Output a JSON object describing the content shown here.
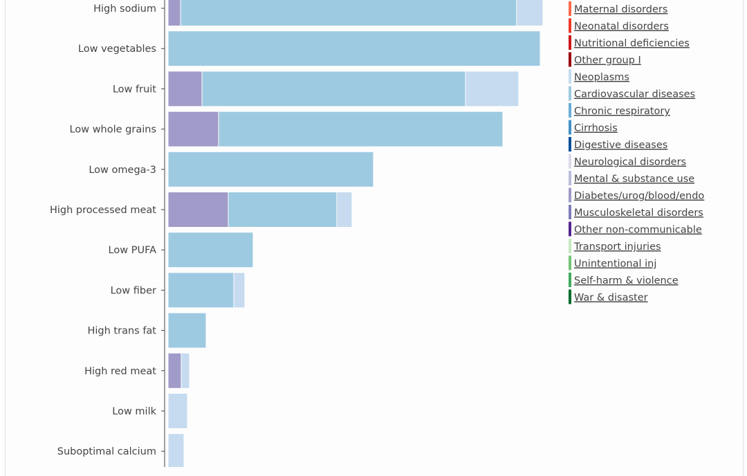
{
  "chart_data": {
    "type": "bar",
    "orientation": "horizontal",
    "stacked": true,
    "title": "",
    "xlabel": "",
    "ylabel": "",
    "units": "relative (axis not shown)",
    "xlim": [
      0,
      560
    ],
    "grid": false,
    "legend_placement": "right",
    "categories": [
      "High sodium",
      "Low vegetables",
      "Low fruit",
      "Low whole grains",
      "Low omega-3",
      "High processed meat",
      "Low PUFA",
      "Low fiber",
      "High trans fat",
      "High red meat",
      "Low milk",
      "Suboptimal calcium"
    ],
    "series": [
      {
        "name": "Diabetes/urog/blood/endo",
        "color": "#a09bc8",
        "values": [
          18,
          0,
          49,
          73,
          0,
          87,
          0,
          0,
          0,
          19,
          0,
          0
        ]
      },
      {
        "name": "Cardiovascular diseases",
        "color": "#9ecae1",
        "values": [
          486,
          538,
          381,
          411,
          297,
          157,
          123,
          95,
          55,
          0,
          0,
          0
        ]
      },
      {
        "name": "Neoplasms",
        "color": "#c6dbef",
        "values": [
          38,
          0,
          77,
          0,
          0,
          22,
          0,
          16,
          0,
          12,
          28,
          23
        ]
      }
    ],
    "legend": [
      {
        "label": "Maternal disorders",
        "color": "#fb6a4a"
      },
      {
        "label": "Neonatal disorders",
        "color": "#ef3b2c"
      },
      {
        "label": "Nutritional deficiencies",
        "color": "#cb181d"
      },
      {
        "label": "Other group I",
        "color": "#99000d"
      },
      {
        "label": "Neoplasms",
        "color": "#c6dbef"
      },
      {
        "label": "Cardiovascular diseases",
        "color": "#9ecae1"
      },
      {
        "label": "Chronic respiratory",
        "color": "#6baed6"
      },
      {
        "label": "Cirrhosis",
        "color": "#4292c6"
      },
      {
        "label": "Digestive diseases",
        "color": "#08519c"
      },
      {
        "label": "Neurological disorders",
        "color": "#dadaeb"
      },
      {
        "label": "Mental & substance use",
        "color": "#bcbddc"
      },
      {
        "label": "Diabetes/urog/blood/endo",
        "color": "#9e9ac8"
      },
      {
        "label": "Musculoskeletal disorders",
        "color": "#807dba"
      },
      {
        "label": "Other non-communicable",
        "color": "#54278f"
      },
      {
        "label": "Transport injuries",
        "color": "#c7e9c0"
      },
      {
        "label": "Unintentional inj",
        "color": "#74c476"
      },
      {
        "label": "Self-harm & violence",
        "color": "#41ab5d"
      },
      {
        "label": "War & disaster",
        "color": "#006d2c"
      }
    ]
  }
}
